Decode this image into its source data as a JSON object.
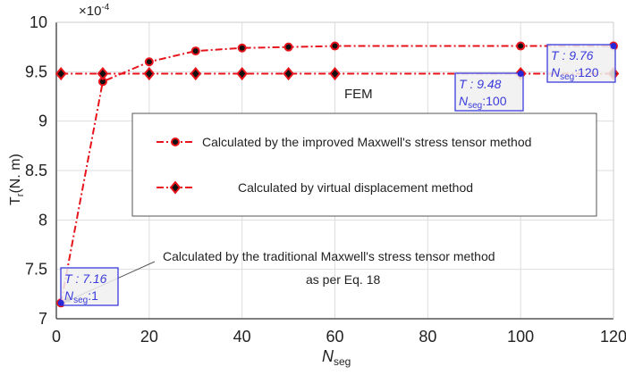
{
  "chart_data": {
    "type": "line",
    "xlabel": "N",
    "xlabel_sub": "seg",
    "ylabel": "T",
    "ylabel_sub": "r",
    "ylabel_unit": "(N. m)",
    "y_multiplier": "×10",
    "y_multiplier_exp": "-4",
    "xlim": [
      0,
      120
    ],
    "ylim": [
      7,
      10
    ],
    "xticks": [
      "0",
      "20",
      "40",
      "60",
      "80",
      "100",
      "120"
    ],
    "yticks": [
      "7",
      "7.5",
      "8",
      "8.5",
      "9",
      "9.5",
      "10"
    ],
    "grid": true,
    "legend_placement": "center-right",
    "series": [
      {
        "name": "Calculated by the improved Maxwell's stress tensor method",
        "marker": "circle",
        "color": "#e8141c",
        "x": [
          1,
          10,
          20,
          30,
          40,
          50,
          60,
          100,
          120
        ],
        "y": [
          7.16,
          9.4,
          9.6,
          9.71,
          9.74,
          9.75,
          9.76,
          9.76,
          9.76
        ]
      },
      {
        "name": "Calculated by virtual displacement method",
        "marker": "diamond",
        "color": "#e8141c",
        "x": [
          1,
          10,
          20,
          30,
          40,
          50,
          60,
          100,
          120
        ],
        "y": [
          9.48,
          9.48,
          9.48,
          9.48,
          9.48,
          9.48,
          9.48,
          9.48,
          9.48
        ]
      }
    ],
    "annotations": {
      "fem": "FEM",
      "traditional_line1": "Calculated by the traditional  Maxwell's stress tensor method",
      "traditional_line2": "as per Eq. 18",
      "tips": [
        {
          "t": "T : 7.16",
          "n_label": "N",
          "n_sub": "seg",
          "n_val": ":1",
          "x": 1,
          "y": 7.16
        },
        {
          "t": "T : 9.48",
          "n_label": "N",
          "n_sub": "seg",
          "n_val": ":100",
          "x": 100,
          "y": 9.48
        },
        {
          "t": "T : 9.76",
          "n_label": "N",
          "n_sub": "seg",
          "n_val": ":120",
          "x": 120,
          "y": 9.76
        }
      ]
    }
  }
}
